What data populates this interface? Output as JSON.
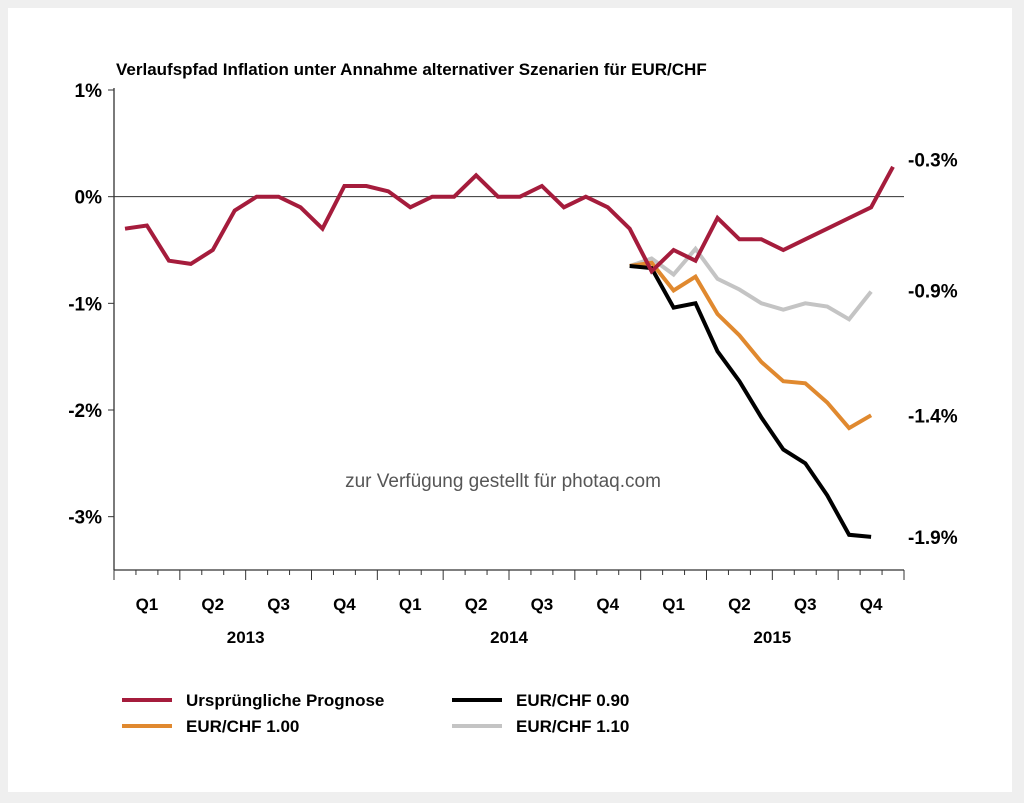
{
  "chart_data": {
    "type": "line",
    "title": "Verlaufspfad Inflation unter Annahme alternativer Szenarien für EUR/CHF",
    "xlabel": "",
    "ylabel": "",
    "ylim": [
      -3.5,
      1
    ],
    "y_ticks": [
      1,
      0,
      -1,
      -2,
      -3
    ],
    "y_tick_labels": [
      "1%",
      "0%",
      "-1%",
      "-2%",
      "-3%"
    ],
    "x_months": [
      "2013-01",
      "2013-02",
      "2013-03",
      "2013-04",
      "2013-05",
      "2013-06",
      "2013-07",
      "2013-08",
      "2013-09",
      "2013-10",
      "2013-11",
      "2013-12",
      "2014-01",
      "2014-02",
      "2014-03",
      "2014-04",
      "2014-05",
      "2014-06",
      "2014-07",
      "2014-08",
      "2014-09",
      "2014-10",
      "2014-11",
      "2014-12",
      "2015-01",
      "2015-02",
      "2015-03",
      "2015-04",
      "2015-05",
      "2015-06",
      "2015-07",
      "2015-08",
      "2015-09",
      "2015-10",
      "2015-11",
      "2015-12"
    ],
    "quarter_labels": [
      "Q1",
      "Q2",
      "Q3",
      "Q4",
      "Q1",
      "Q2",
      "Q3",
      "Q4",
      "Q1",
      "Q2",
      "Q3",
      "Q4"
    ],
    "year_labels": [
      "2013",
      "2014",
      "2015"
    ],
    "zero_line": true,
    "grid": false,
    "legend_position": "bottom",
    "series": [
      {
        "name": "Ursprüngliche Prognose",
        "color": "#a51c3c",
        "start_index": 0,
        "values": [
          -0.3,
          -0.27,
          -0.6,
          -0.63,
          -0.5,
          -0.13,
          0,
          0,
          -0.1,
          -0.3,
          0.1,
          0.1,
          0.05,
          -0.1,
          0,
          0,
          0.2,
          0,
          0,
          0.1,
          -0.1,
          0,
          -0.1,
          -0.3,
          -0.7,
          -0.5,
          -0.6,
          -0.2,
          -0.4,
          -0.4,
          -0.5,
          -0.4,
          -0.3,
          -0.2,
          -0.1,
          0.28
        ]
      },
      {
        "name": "EUR/CHF 0.90",
        "color": "#000000",
        "start_index": 23,
        "values": [
          -0.65,
          -0.67,
          -1.04,
          -1.0,
          -1.45,
          -1.73,
          -2.07,
          -2.37,
          -2.5,
          -2.8,
          -3.17,
          -3.19
        ]
      },
      {
        "name": "EUR/CHF 1.00",
        "color": "#e0892f",
        "start_index": 23,
        "values": [
          -0.65,
          -0.62,
          -0.88,
          -0.75,
          -1.1,
          -1.3,
          -1.55,
          -1.73,
          -1.75,
          -1.93,
          -2.17,
          -2.05
        ]
      },
      {
        "name": "EUR/CHF 1.10",
        "color": "#c4c4c4",
        "start_index": 23,
        "values": [
          -0.65,
          -0.58,
          -0.73,
          -0.49,
          -0.77,
          -0.87,
          -1.0,
          -1.06,
          -1.0,
          -1.03,
          -1.15,
          -0.89
        ]
      }
    ],
    "annotations": [
      {
        "text": "-0.3%",
        "y": 0.35
      },
      {
        "text": "-0.9%",
        "y": -0.88
      },
      {
        "text": "-1.4%",
        "y": -2.05
      },
      {
        "text": "-1.9%",
        "y": -3.19
      }
    ],
    "watermark": "zur Verfügung gestellt für photaq.com"
  }
}
